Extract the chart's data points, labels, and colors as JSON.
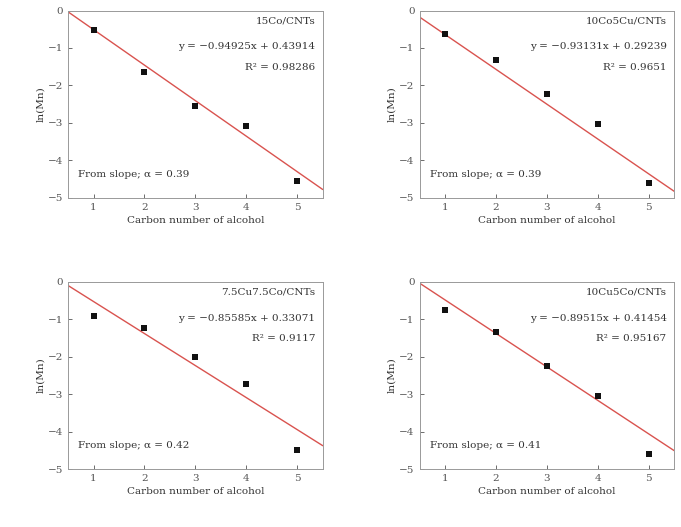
{
  "subplots": [
    {
      "title": "15Co/CNTs",
      "equation": "y = −0.94925x + 0.43914",
      "r2": "R² = 0.98286",
      "slope": -0.94925,
      "intercept": 0.43914,
      "alpha_text": "From slope; α = 0.39",
      "x_data": [
        1,
        2,
        3,
        4,
        5
      ],
      "y_data": [
        -0.51,
        -1.65,
        -2.55,
        -3.08,
        -4.55
      ]
    },
    {
      "title": "10Co5Cu/CNTs",
      "equation": "y = −0.93131x + 0.29239",
      "r2": "R² = 0.9651",
      "slope": -0.93131,
      "intercept": 0.29239,
      "alpha_text": "From slope; α = 0.39",
      "x_data": [
        1,
        2,
        3,
        4,
        5
      ],
      "y_data": [
        -0.64,
        -1.33,
        -2.22,
        -3.02,
        -4.6
      ]
    },
    {
      "title": "7.5Cu7.5Co/CNTs",
      "equation": "y = −0.85585x + 0.33071",
      "r2": "R² = 0.9117",
      "slope": -0.85585,
      "intercept": 0.33071,
      "alpha_text": "From slope; α = 0.42",
      "x_data": [
        1,
        2,
        3,
        4,
        5
      ],
      "y_data": [
        -0.9,
        -1.22,
        -2.0,
        -2.72,
        -4.48
      ]
    },
    {
      "title": "10Cu5Co/CNTs",
      "equation": "y = −0.89515x + 0.41454",
      "r2": "R² = 0.95167",
      "slope": -0.89515,
      "intercept": 0.41454,
      "alpha_text": "From slope; α = 0.41",
      "x_data": [
        1,
        2,
        3,
        4,
        5
      ],
      "y_data": [
        -0.75,
        -1.35,
        -2.25,
        -3.05,
        -4.6
      ]
    }
  ],
  "xlabel": "Carbon number of alcohol",
  "ylabel": "ln(Mn)",
  "ylim": [
    -5,
    0
  ],
  "xlim": [
    0.5,
    5.5
  ],
  "yticks": [
    -5,
    -4,
    -3,
    -2,
    -1,
    0
  ],
  "xticks": [
    1,
    2,
    3,
    4,
    5
  ],
  "line_color": "#d9534f",
  "marker_color": "#111111",
  "text_color": "#333333",
  "bg_color": "#ffffff",
  "panel_bg": "#ffffff",
  "spine_color": "#999999",
  "tick_color": "#555555"
}
